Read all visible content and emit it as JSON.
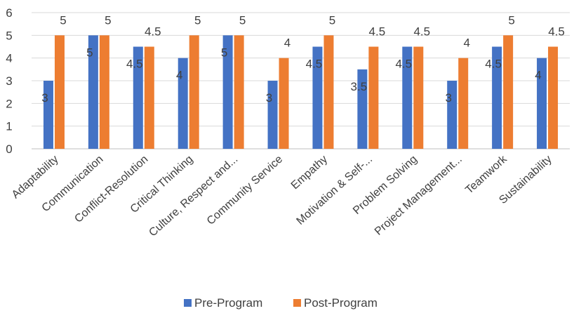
{
  "chart_data": {
    "type": "bar",
    "title": "",
    "xlabel": "",
    "ylabel": "",
    "ylim": [
      0,
      6
    ],
    "yticks": [
      "0",
      "1",
      "2",
      "3",
      "4",
      "5",
      "6"
    ],
    "grid": true,
    "legend_position": "bottom",
    "categories": [
      "Adaptability",
      "Communication",
      "Conflict-Resolution",
      "Critical Thinking",
      "Culture, Respect and...",
      "Community Service",
      "Empathy",
      "Motivation & Self-...",
      "Problem Solving",
      "Project Management...",
      "Teamwork",
      "Sustainability"
    ],
    "series": [
      {
        "name": "Pre-Program",
        "color": "#4472C4",
        "values": [
          3,
          5,
          4.5,
          4,
          5,
          3,
          4.5,
          3.5,
          4.5,
          3,
          4.5,
          4
        ],
        "labels": [
          "3",
          "5",
          "4.5",
          "4",
          "5",
          "3",
          "4.5",
          "3.5",
          "4.5",
          "3",
          "4.5",
          "4"
        ]
      },
      {
        "name": "Post-Program",
        "color": "#ED7D31",
        "values": [
          5,
          5,
          4.5,
          5,
          5,
          4,
          5,
          4.5,
          4.5,
          4,
          5,
          4.5
        ],
        "labels": [
          "5",
          "5",
          "4.5",
          "5",
          "5",
          "4",
          "5",
          "4.5",
          "4.5",
          "4",
          "5",
          "4.5"
        ]
      }
    ]
  }
}
